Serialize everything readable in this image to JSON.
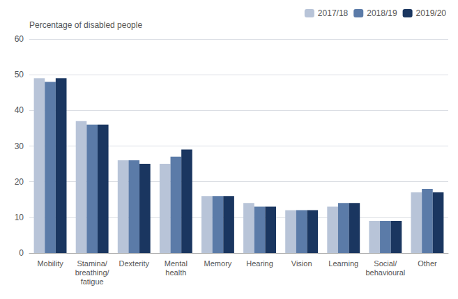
{
  "chart_data": {
    "type": "bar",
    "categories": [
      "Mobility",
      "Stamina/\nbreathing/\nfatigue",
      "Dexterity",
      "Mental\nhealth",
      "Memory",
      "Hearing",
      "Vision",
      "Learning",
      "Social/\nbehavioural",
      "Other"
    ],
    "series": [
      {
        "name": "2017/18",
        "color": "#b8c4d8",
        "values": [
          49,
          37,
          26,
          25,
          16,
          14,
          12,
          13,
          9,
          17
        ]
      },
      {
        "name": "2018/19",
        "color": "#5b7ba8",
        "values": [
          48,
          36,
          26,
          27,
          16,
          13,
          12,
          14,
          9,
          18
        ]
      },
      {
        "name": "2019/20",
        "color": "#1a3660",
        "values": [
          49,
          36,
          25,
          29,
          16,
          13,
          12,
          14,
          9,
          17
        ]
      }
    ],
    "ylabel": "Percentage of disabled people",
    "ylim": [
      0,
      60
    ],
    "yticks": [
      0,
      10,
      20,
      30,
      40,
      50,
      60
    ],
    "grid": true,
    "legend": "upper right"
  }
}
